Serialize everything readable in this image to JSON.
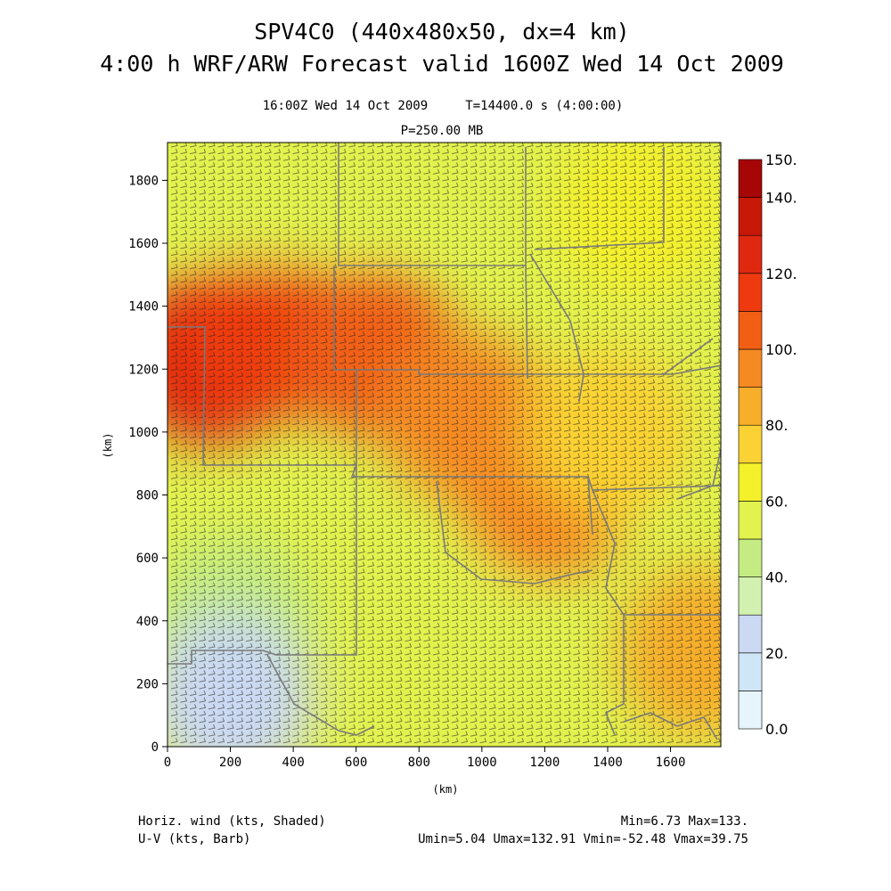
{
  "title_line1": "SPV4C0 (440x480x50, dx=4 km)",
  "title_line2": "4:00 h WRF/ARW Forecast valid 1600Z Wed 14 Oct 2009",
  "subtitle_time": "16:00Z Wed 14 Oct 2009     T=14400.0 s (4:00:00)",
  "subtitle_level": "P=250.00 MB",
  "footer": {
    "left1": "Horiz. wind (kts, Shaded)",
    "left2": "U-V (kts, Barb)",
    "right1": "Min=6.73 Max=133.",
    "right2": "Umin=5.04 Umax=132.91 Vmin=-52.48 Vmax=39.75"
  },
  "chart_data": {
    "type": "heatmap",
    "xlabel": "(km)",
    "ylabel": "(km)",
    "xlim": [
      0,
      1760
    ],
    "ylim": [
      0,
      1920
    ],
    "x_ticks": [
      0,
      200,
      400,
      600,
      800,
      1000,
      1200,
      1400,
      1600
    ],
    "y_ticks": [
      0,
      200,
      400,
      600,
      800,
      1000,
      1200,
      1400,
      1600,
      1800
    ],
    "colorbar": {
      "levels": [
        0,
        10,
        20,
        30,
        40,
        50,
        60,
        70,
        80,
        90,
        100,
        110,
        120,
        130,
        140,
        150
      ],
      "labels": [
        "0.0",
        "20.",
        "40.",
        "60.",
        "80.",
        "100.",
        "120.",
        "140.",
        "150."
      ],
      "label_values": [
        0,
        20,
        40,
        60,
        80,
        100,
        120,
        140,
        150
      ],
      "colors": [
        "#e6f4fb",
        "#cfe6f7",
        "#cbd9f2",
        "#d2f1b0",
        "#c4ec82",
        "#e2f24e",
        "#f4f02a",
        "#fbd233",
        "#f6ae2b",
        "#f68a22",
        "#f25f14",
        "#ef3a10",
        "#e02810",
        "#c71808",
        "#a60606"
      ]
    },
    "grid": false,
    "wind_speed_field_approx": [
      {
        "x": 130,
        "y": 1230,
        "value": 128
      },
      {
        "x": 300,
        "y": 1300,
        "value": 118
      },
      {
        "x": 650,
        "y": 1250,
        "value": 108
      },
      {
        "x": 950,
        "y": 1050,
        "value": 98
      },
      {
        "x": 1200,
        "y": 800,
        "value": 90
      },
      {
        "x": 1400,
        "y": 1000,
        "value": 72
      },
      {
        "x": 1500,
        "y": 1700,
        "value": 68
      },
      {
        "x": 300,
        "y": 1800,
        "value": 52
      },
      {
        "x": 700,
        "y": 1850,
        "value": 58
      },
      {
        "x": 200,
        "y": 400,
        "value": 45
      },
      {
        "x": 200,
        "y": 150,
        "value": 24
      },
      {
        "x": 900,
        "y": 300,
        "value": 52
      },
      {
        "x": 1700,
        "y": 300,
        "value": 85
      }
    ]
  }
}
